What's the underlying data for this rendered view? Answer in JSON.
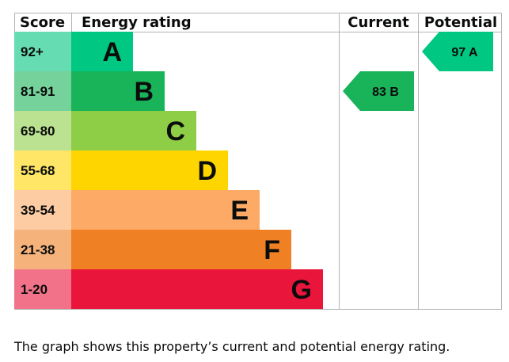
{
  "chart_data": {
    "type": "epc-rating",
    "headers": {
      "score": "Score",
      "rating": "Energy rating",
      "current": "Current",
      "potential": "Potential"
    },
    "bands": [
      {
        "letter": "A",
        "range": "92+",
        "color": "#00c781",
        "score_bg": "#66dcb3"
      },
      {
        "letter": "B",
        "range": "81-91",
        "color": "#19b459",
        "score_bg": "#75d29b"
      },
      {
        "letter": "C",
        "range": "69-80",
        "color": "#8dce46",
        "score_bg": "#bbe290"
      },
      {
        "letter": "D",
        "range": "55-68",
        "color": "#ffd500",
        "score_bg": "#ffe666"
      },
      {
        "letter": "E",
        "range": "39-54",
        "color": "#fcaa65",
        "score_bg": "#fdcca3"
      },
      {
        "letter": "F",
        "range": "21-38",
        "color": "#ef8023",
        "score_bg": "#f5b37b"
      },
      {
        "letter": "G",
        "range": "1-20",
        "color": "#e9153b",
        "score_bg": "#f27389"
      }
    ],
    "current": {
      "value": 83,
      "band": "B",
      "label": "83 B"
    },
    "potential": {
      "value": 97,
      "band": "A",
      "label": "97 A"
    }
  },
  "caption": "The graph shows this property’s current and potential energy rating."
}
